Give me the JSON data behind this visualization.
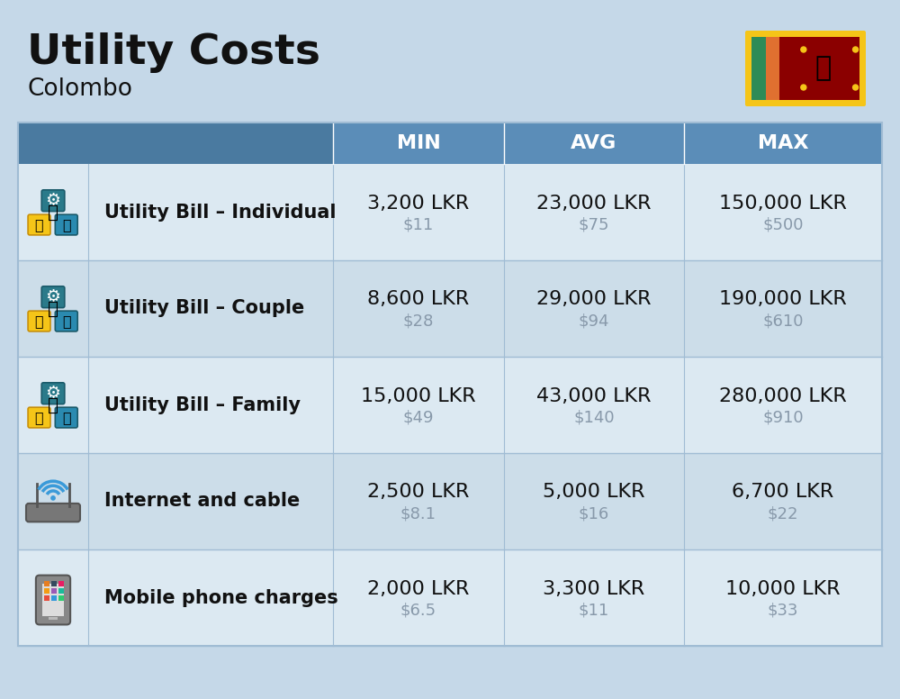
{
  "title": "Utility Costs",
  "subtitle": "Colombo",
  "background_color": "#c5d8e8",
  "header_color": "#5b8db8",
  "header_text_color": "#ffffff",
  "row_color_odd": "#dce9f2",
  "row_color_even": "#ccdde9",
  "cell_text_color": "#111111",
  "cell_subtext_color": "#8899aa",
  "divider_color": "#a0bcd4",
  "columns": [
    "MIN",
    "AVG",
    "MAX"
  ],
  "rows": [
    {
      "label": "Utility Bill – Individual",
      "min_lkr": "3,200 LKR",
      "min_usd": "$11",
      "avg_lkr": "23,000 LKR",
      "avg_usd": "$75",
      "max_lkr": "150,000 LKR",
      "max_usd": "$500"
    },
    {
      "label": "Utility Bill – Couple",
      "min_lkr": "8,600 LKR",
      "min_usd": "$28",
      "avg_lkr": "29,000 LKR",
      "avg_usd": "$94",
      "max_lkr": "190,000 LKR",
      "max_usd": "$610"
    },
    {
      "label": "Utility Bill – Family",
      "min_lkr": "15,000 LKR",
      "min_usd": "$49",
      "avg_lkr": "43,000 LKR",
      "avg_usd": "$140",
      "max_lkr": "280,000 LKR",
      "max_usd": "$910"
    },
    {
      "label": "Internet and cable",
      "min_lkr": "2,500 LKR",
      "min_usd": "$8.1",
      "avg_lkr": "5,000 LKR",
      "avg_usd": "$16",
      "max_lkr": "6,700 LKR",
      "max_usd": "$22"
    },
    {
      "label": "Mobile phone charges",
      "min_lkr": "2,000 LKR",
      "min_usd": "$6.5",
      "avg_lkr": "3,300 LKR",
      "avg_usd": "$11",
      "max_lkr": "10,000 LKR",
      "max_usd": "$33"
    }
  ],
  "title_fontsize": 34,
  "subtitle_fontsize": 19,
  "header_fontsize": 16,
  "label_fontsize": 15,
  "value_fontsize": 16,
  "subvalue_fontsize": 13,
  "flag_colors": {
    "border": "#f5c518",
    "maroon": "#8b0000",
    "green": "#2e8b57",
    "orange": "#e07030",
    "lion": "#f5c518"
  }
}
